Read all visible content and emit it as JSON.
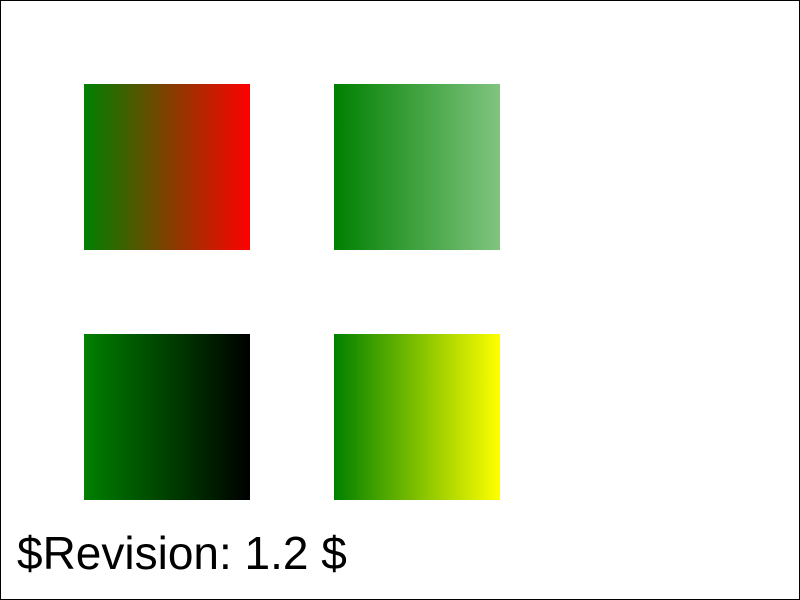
{
  "revision_text": "$Revision: 1.2 $",
  "swatches": [
    {
      "id": "sw-tl",
      "name": "green-to-red",
      "from": "#008000",
      "to": "#ff0000"
    },
    {
      "id": "sw-tr",
      "name": "green-to-light-green",
      "from": "#008000",
      "to": "#80c480"
    },
    {
      "id": "sw-bl",
      "name": "green-to-black",
      "from": "#008000",
      "to": "#000000"
    },
    {
      "id": "sw-br",
      "name": "green-to-yellow",
      "from": "#008000",
      "to": "#ffff00"
    }
  ]
}
